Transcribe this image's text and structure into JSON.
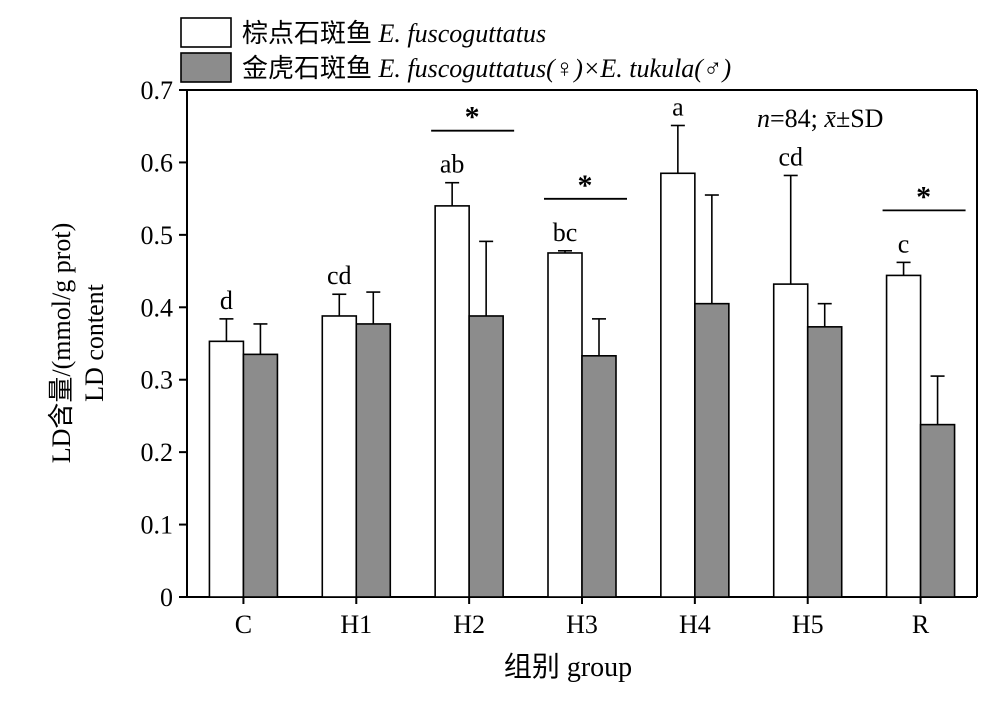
{
  "chart_data": {
    "type": "bar",
    "categories": [
      "C",
      "H1",
      "H2",
      "H3",
      "H4",
      "H5",
      "R"
    ],
    "series": [
      {
        "name": "棕点石斑鱼 E. fuscoguttatus",
        "name_cn": "棕点石斑鱼",
        "name_latin": "E. fuscoguttatus",
        "color": "#ffffff",
        "values": [
          0.353,
          0.388,
          0.54,
          0.475,
          0.585,
          0.432,
          0.444
        ],
        "errors": [
          0.031,
          0.03,
          0.032,
          0.003,
          0.066,
          0.15,
          0.018
        ]
      },
      {
        "name": "金虎石斑鱼 E. fuscoguttatus(♀)×E. tukula(♂)",
        "name_cn": "金虎石斑鱼",
        "name_latin": "E. fuscoguttatus(♀)×E. tukula(♂)",
        "color": "#8c8c8c",
        "values": [
          0.335,
          0.377,
          0.388,
          0.333,
          0.405,
          0.373,
          0.238
        ],
        "errors": [
          0.042,
          0.044,
          0.103,
          0.051,
          0.15,
          0.032,
          0.067
        ]
      }
    ],
    "letters": [
      "d",
      "cd",
      "ab",
      "bc",
      "a",
      "cd",
      "c"
    ],
    "significance": [
      {
        "category": "H2",
        "label": "*"
      },
      {
        "category": "H3",
        "label": "*"
      },
      {
        "category": "R",
        "label": "*"
      }
    ],
    "ylim": [
      0,
      0.7
    ],
    "yticks": [
      "0",
      "0.1",
      "0.2",
      "0.3",
      "0.4",
      "0.5",
      "0.6",
      "0.7"
    ],
    "ylabel_line1": "LD含量/(mmol/g prot)",
    "ylabel_line2": "LD content",
    "xlabel": "组别 group",
    "annotation": "n=84; x̄±SD",
    "legend_position": "top-left"
  }
}
